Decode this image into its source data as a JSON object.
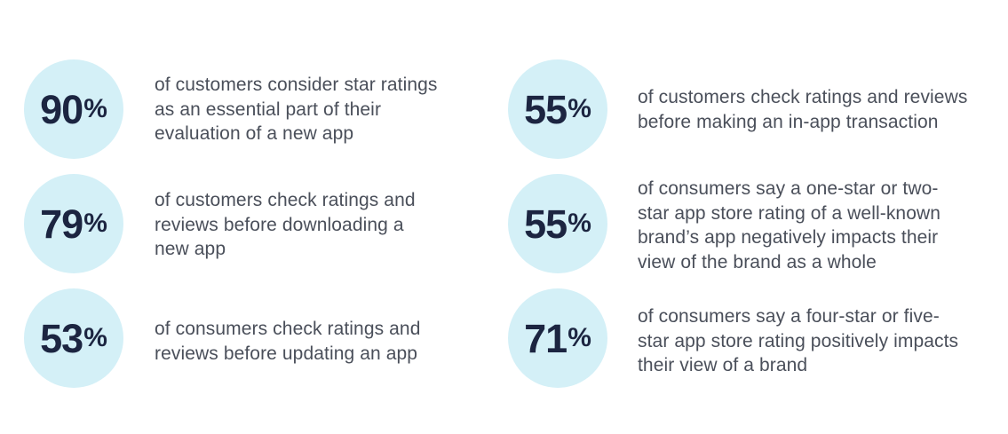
{
  "colors": {
    "circle_fill": "#d4f0f7",
    "number_text": "#1c2541",
    "body_text": "#4a4f5a",
    "background": "#ffffff"
  },
  "stats": [
    {
      "number": "90",
      "unit": "%",
      "lines": [
        "of customers consider star ratings",
        "as an essential part of their",
        "evaluation of a new app"
      ]
    },
    {
      "number": "79",
      "unit": "%",
      "lines": [
        "of customers check ratings and",
        "reviews before downloading a",
        "new app"
      ]
    },
    {
      "number": "53",
      "unit": "%",
      "lines": [
        "of consumers check ratings and",
        "reviews before updating an app"
      ]
    },
    {
      "number": "55",
      "unit": "%",
      "lines": [
        "of customers check ratings and reviews",
        "before making an in-app transaction"
      ]
    },
    {
      "number": "55",
      "unit": "%",
      "lines": [
        "of consumers say a one-star or two-",
        "star app store rating of a well-known",
        "brand’s app negatively impacts their",
        "view of the brand as a whole"
      ]
    },
    {
      "number": "71",
      "unit": "%",
      "lines": [
        "of consumers say a four-star or five-",
        "star app store rating positively impacts",
        "their view of a brand"
      ]
    }
  ]
}
